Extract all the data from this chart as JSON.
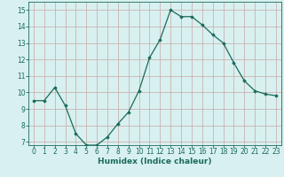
{
  "x": [
    0,
    1,
    2,
    3,
    4,
    5,
    6,
    7,
    8,
    9,
    10,
    11,
    12,
    13,
    14,
    15,
    16,
    17,
    18,
    19,
    20,
    21,
    22,
    23
  ],
  "y": [
    9.5,
    9.5,
    10.3,
    9.2,
    7.5,
    6.8,
    6.8,
    7.3,
    8.1,
    8.8,
    10.1,
    12.1,
    13.2,
    15.0,
    14.6,
    14.6,
    14.1,
    13.5,
    13.0,
    11.8,
    10.7,
    10.1,
    9.9,
    9.8
  ],
  "line_color": "#1a6b5a",
  "marker": "D",
  "marker_size": 1.8,
  "linewidth": 0.9,
  "bg_color": "#d8f0f0",
  "grid_color": "#c8a8a8",
  "xlabel": "Humidex (Indice chaleur)",
  "xlim": [
    -0.5,
    23.5
  ],
  "ylim": [
    6.8,
    15.5
  ],
  "yticks": [
    7,
    8,
    9,
    10,
    11,
    12,
    13,
    14,
    15
  ],
  "xticks": [
    0,
    1,
    2,
    3,
    4,
    5,
    6,
    7,
    8,
    9,
    10,
    11,
    12,
    13,
    14,
    15,
    16,
    17,
    18,
    19,
    20,
    21,
    22,
    23
  ],
  "xlabel_fontsize": 6.5,
  "tick_fontsize": 5.5,
  "tick_color": "#1a6b5a",
  "label_color": "#1a6b5a"
}
